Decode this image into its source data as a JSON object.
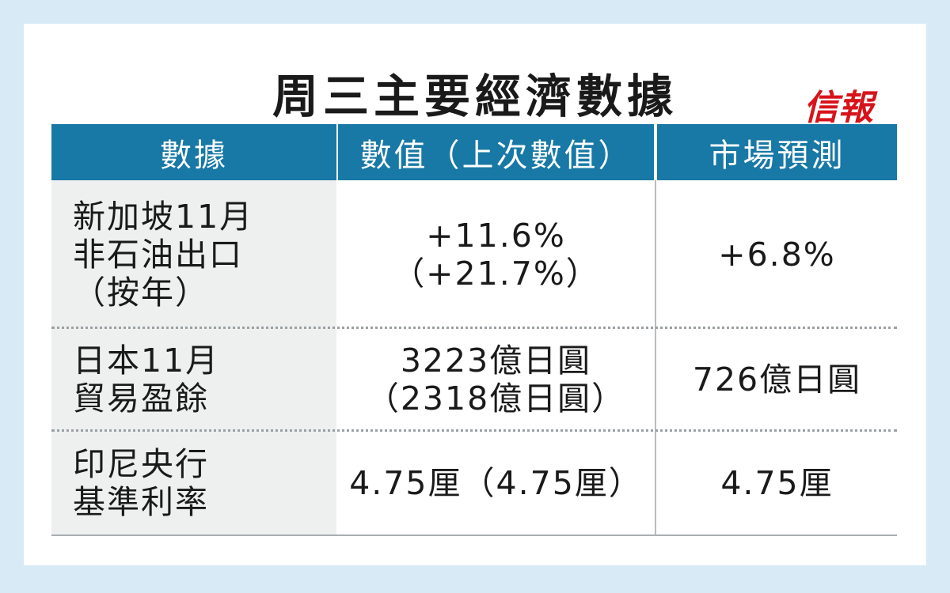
{
  "title": "周三主要經濟數據",
  "logo": "信報",
  "table": {
    "header": [
      "數據",
      "數值（上次數值）",
      "市場預測"
    ],
    "rows": [
      [
        [
          "新加坡11月",
          "非石油出口",
          "（按年）"
        ],
        [
          "+11.6%",
          "（+21.7%）"
        ],
        [
          "+6.8%"
        ]
      ],
      [
        [
          "日本11月",
          "貿易盈餘"
        ],
        [
          "3223億日圓",
          "（2318億日圓）"
        ],
        [
          "726億日圓"
        ]
      ],
      [
        [
          "印尼央行",
          "基準利率"
        ],
        [
          "4.75厘（4.75厘）"
        ],
        [
          "4.75厘"
        ]
      ]
    ]
  }
}
